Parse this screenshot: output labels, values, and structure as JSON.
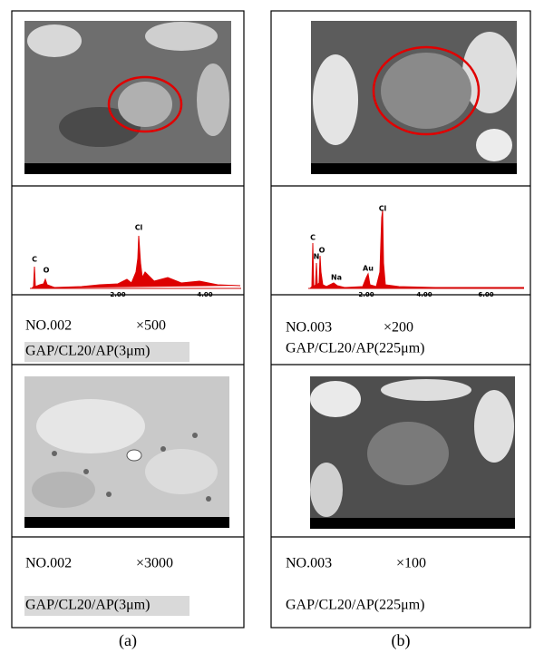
{
  "panels": [
    {
      "caption": "(a)",
      "spectrum": {
        "peaks": [
          "C",
          "O",
          "Cl"
        ],
        "axis_labels": [
          "2.00",
          "4.00"
        ]
      },
      "info_top": {
        "sample": "NO.002",
        "magnification": "×500",
        "material": "GAP/CL20/AP(3μm)"
      },
      "info_bottom": {
        "sample": "NO.002",
        "magnification": "×3000",
        "material": "GAP/CL20/AP(3μm)"
      }
    },
    {
      "caption": "(b)",
      "spectrum": {
        "peaks": [
          "C",
          "N",
          "O",
          "Na",
          "Au",
          "Cl"
        ],
        "axis_labels": [
          "2.00",
          "4.00",
          "6.00"
        ]
      },
      "info_top": {
        "sample": "NO.003",
        "magnification": "×200",
        "material": "GAP/CL20/AP(225μm)"
      },
      "info_bottom": {
        "sample": "NO.003",
        "magnification": "×100",
        "material": "GAP/CL20/AP(225μm)"
      }
    }
  ]
}
